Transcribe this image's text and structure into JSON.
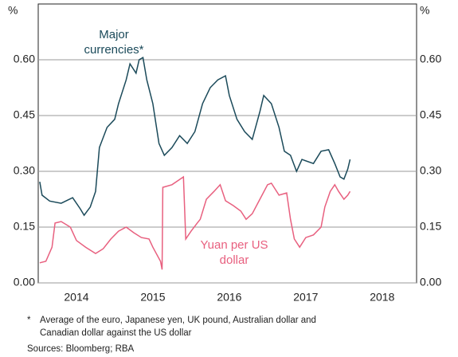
{
  "chart_data": {
    "type": "line",
    "y_unit_left": "%",
    "y_unit_right": "%",
    "xlim": [
      2014,
      2018.95
    ],
    "xticks": [
      {
        "value": 2014.5,
        "label": "2014"
      },
      {
        "value": 2015.5,
        "label": "2015"
      },
      {
        "value": 2016.5,
        "label": "2016"
      },
      {
        "value": 2017.5,
        "label": "2017"
      },
      {
        "value": 2018.5,
        "label": "2018"
      }
    ],
    "ylim": [
      0,
      0.75
    ],
    "yticks": [
      {
        "value": 0,
        "label": "0.00"
      },
      {
        "value": 0.15,
        "label": "0.15"
      },
      {
        "value": 0.3,
        "label": "0.30"
      },
      {
        "value": 0.45,
        "label": "0.45"
      },
      {
        "value": 0.6,
        "label": "0.60"
      }
    ],
    "grid": true,
    "series": [
      {
        "name": "Major currencies*",
        "color": "#1b4a5a",
        "x": [
          2014.02,
          2014.05,
          2014.15,
          2014.3,
          2014.45,
          2014.55,
          2014.6,
          2014.68,
          2014.75,
          2014.8,
          2014.9,
          2015.0,
          2015.05,
          2015.15,
          2015.2,
          2015.28,
          2015.32,
          2015.37,
          2015.42,
          2015.5,
          2015.58,
          2015.65,
          2015.75,
          2015.85,
          2015.95,
          2016.05,
          2016.15,
          2016.25,
          2016.35,
          2016.45,
          2016.5,
          2016.6,
          2016.7,
          2016.8,
          2016.9,
          2016.95,
          2017.05,
          2017.15,
          2017.22,
          2017.3,
          2017.38,
          2017.45,
          2017.6,
          2017.7,
          2017.8,
          2017.88,
          2017.95,
          2018.0,
          2018.05,
          2018.08
        ],
        "values": [
          0.272,
          0.236,
          0.22,
          0.214,
          0.229,
          0.199,
          0.182,
          0.204,
          0.246,
          0.364,
          0.418,
          0.44,
          0.482,
          0.546,
          0.589,
          0.564,
          0.6,
          0.606,
          0.546,
          0.482,
          0.375,
          0.343,
          0.364,
          0.396,
          0.375,
          0.407,
          0.482,
          0.525,
          0.546,
          0.557,
          0.504,
          0.44,
          0.407,
          0.386,
          0.461,
          0.504,
          0.482,
          0.418,
          0.354,
          0.343,
          0.3,
          0.332,
          0.321,
          0.354,
          0.358,
          0.321,
          0.285,
          0.279,
          0.306,
          0.332
        ]
      },
      {
        "name": "Yuan per US dollar",
        "color": "#e8607f",
        "x": [
          2014.02,
          2014.1,
          2014.18,
          2014.22,
          2014.3,
          2014.42,
          2014.5,
          2014.62,
          2014.75,
          2014.85,
          2014.95,
          2015.05,
          2015.15,
          2015.25,
          2015.35,
          2015.45,
          2015.5,
          2015.6,
          2015.62,
          2015.63,
          2015.75,
          2015.9,
          2015.93,
          2016.0,
          2016.08,
          2016.12,
          2016.2,
          2016.3,
          2016.38,
          2016.45,
          2016.55,
          2016.65,
          2016.72,
          2016.8,
          2016.9,
          2017.0,
          2017.05,
          2017.15,
          2017.25,
          2017.3,
          2017.35,
          2017.42,
          2017.5,
          2017.6,
          2017.7,
          2017.75,
          2017.82,
          2017.88,
          2017.93,
          2018.0,
          2018.05,
          2018.08
        ],
        "values": [
          0.054,
          0.058,
          0.096,
          0.161,
          0.165,
          0.15,
          0.114,
          0.096,
          0.079,
          0.092,
          0.118,
          0.139,
          0.15,
          0.135,
          0.122,
          0.118,
          0.096,
          0.058,
          0.036,
          0.257,
          0.264,
          0.285,
          0.118,
          0.139,
          0.161,
          0.171,
          0.225,
          0.246,
          0.264,
          0.221,
          0.208,
          0.193,
          0.171,
          0.186,
          0.225,
          0.264,
          0.268,
          0.236,
          0.242,
          0.171,
          0.118,
          0.096,
          0.122,
          0.129,
          0.15,
          0.204,
          0.246,
          0.264,
          0.246,
          0.225,
          0.236,
          0.246
        ]
      }
    ],
    "annotations": [
      [
        "Major",
        "currencies*"
      ],
      [
        "Yuan per US",
        "dollar"
      ]
    ],
    "footnote_marker": "*",
    "footnote": [
      "Average of the euro, Japanese yen, UK pound, Australian dollar and",
      "Canadian dollar against the US dollar"
    ],
    "sources": "Sources: Bloomberg; RBA"
  }
}
